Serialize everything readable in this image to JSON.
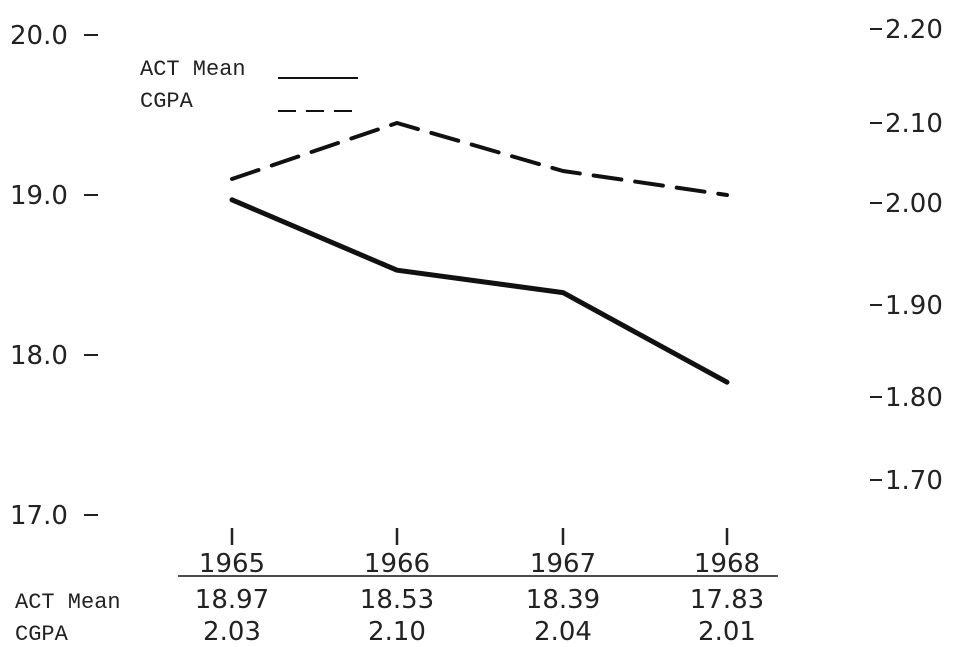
{
  "chart_data": {
    "type": "line",
    "categories": [
      "1965",
      "1966",
      "1967",
      "1968"
    ],
    "series": [
      {
        "name": "ACT Mean",
        "values": [
          18.97,
          18.53,
          18.39,
          17.83
        ],
        "axis": "left",
        "line_style": "solid",
        "color": "#111111"
      },
      {
        "name": "CGPA",
        "values": [
          2.03,
          2.1,
          2.04,
          2.01
        ],
        "axis": "right",
        "line_style": "dashed",
        "color": "#111111"
      }
    ],
    "left_axis": {
      "ticks": [
        "17.0",
        "18.0",
        "19.0",
        "20.0"
      ],
      "ylim": [
        17.0,
        20.0
      ]
    },
    "right_axis": {
      "ticks": [
        "1.70",
        "1.80",
        "1.90",
        "2.00",
        "2.10",
        "2.20"
      ],
      "ylim": [
        1.7,
        2.2
      ]
    },
    "legend": {
      "position": "top-left",
      "entries": [
        "ACT Mean",
        "CGPA"
      ]
    },
    "table": {
      "row_labels": [
        "ACT Mean",
        "CGPA"
      ],
      "act_values": [
        "18.97",
        "18.53",
        "18.39",
        "17.83"
      ],
      "cgpa_values": [
        "2.03",
        "2.10",
        "2.04",
        "2.01"
      ]
    },
    "grid": false
  }
}
